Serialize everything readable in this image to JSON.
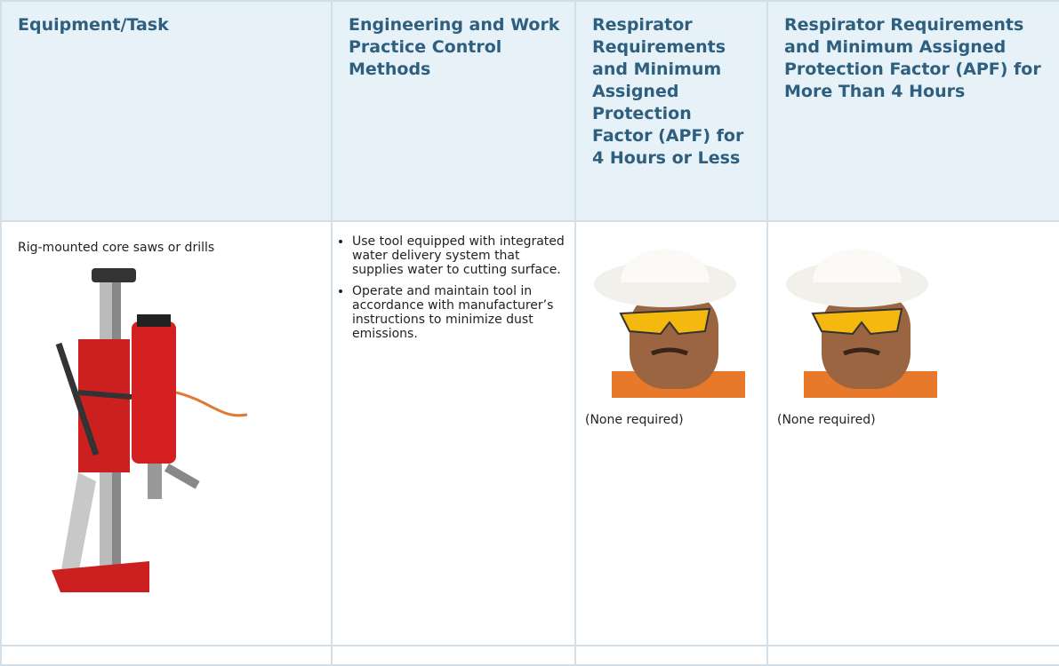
{
  "table": {
    "headers": [
      "Equipment/Task",
      "Engineering and Work Practice Control Methods",
      "Respirator Requirements and Minimum Assigned Protection Factor (APF) for 4 Hours or Less",
      "Respirator Requirements and Minimum Assigned Protection Factor (APF) for More Than 4 Hours"
    ],
    "rows": [
      [
        "Rig-mounted core saws or drills",
        [
          "Use tool equipped with integrated water delivery system that supplies water to cutting surface.",
          "Operate and maintain tool in accordance with manufacturer’s instructions to minimize dust emissions."
        ],
        "(None required)",
        "(None required)"
      ]
    ]
  }
}
